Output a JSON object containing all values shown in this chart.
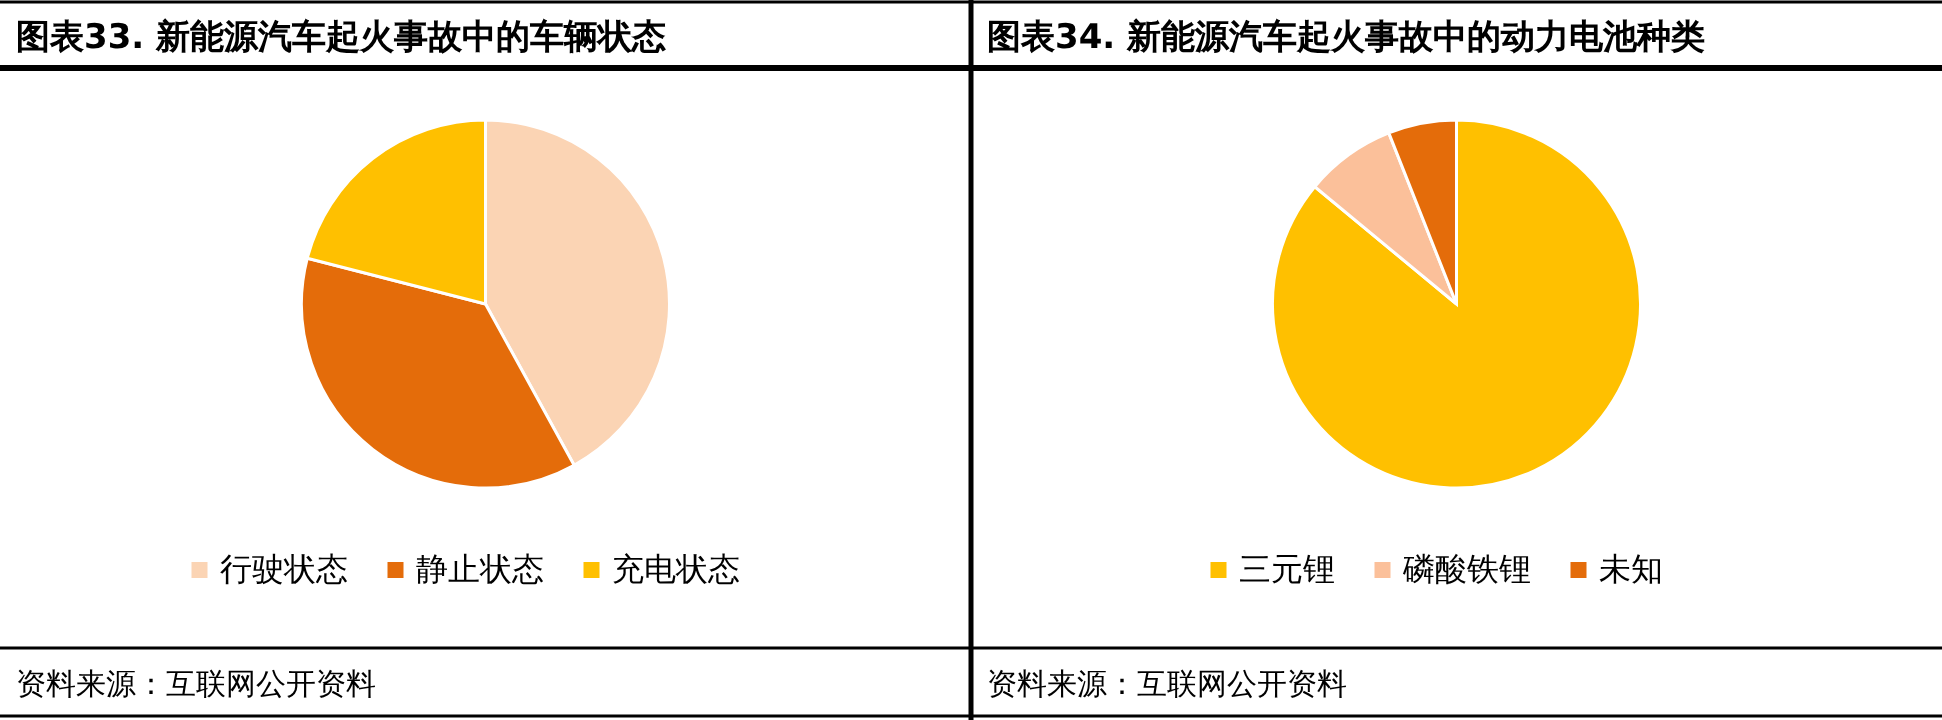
{
  "chart_data": [
    {
      "type": "pie",
      "title": "图表33. 新能源汽车起火事故中的车辆状态",
      "categories": [
        "行驶状态",
        "静止状态",
        "充电状态"
      ],
      "values": [
        42,
        37,
        21
      ],
      "colors": [
        "#fbd4b4",
        "#e46c0a",
        "#ffc000"
      ],
      "legend": "bottom",
      "annotations": [
        "资料来源：互联网公开资料"
      ]
    },
    {
      "type": "pie",
      "title": "图表34. 新能源汽车起火事故中的动力电池种类",
      "categories": [
        "三元锂",
        "磷酸铁锂",
        "未知"
      ],
      "values": [
        86,
        8,
        6
      ],
      "colors": [
        "#ffc000",
        "#fbc09a",
        "#e46c0a"
      ],
      "legend": "bottom",
      "annotations": [
        "资料来源：互联网公开资料"
      ]
    }
  ]
}
